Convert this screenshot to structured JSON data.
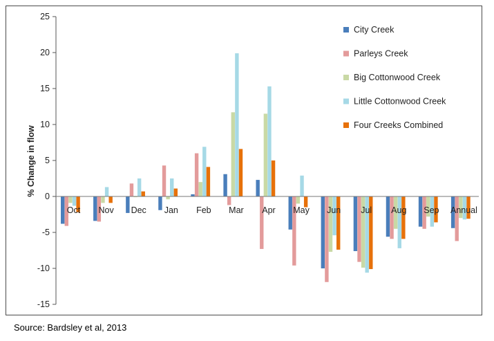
{
  "source": "Source: Bardsley et al, 2013",
  "chart_data": {
    "type": "bar",
    "title": "",
    "xlabel": "",
    "ylabel": "% Change in flow",
    "ylim": [
      -15,
      25
    ],
    "yticks": [
      25,
      20,
      15,
      10,
      5,
      0,
      -5,
      -10,
      -15
    ],
    "grid": false,
    "legend_position": "top-right",
    "categories": [
      "Oct",
      "Nov",
      "Dec",
      "Jan",
      "Feb",
      "Mar",
      "Apr",
      "May",
      "Jun",
      "Jul",
      "Aug",
      "Sep",
      "Annual"
    ],
    "series": [
      {
        "name": "City Creek",
        "color": "#4a7ebb",
        "values": [
          -3.8,
          -3.4,
          -2.3,
          -1.9,
          0.3,
          3.1,
          2.3,
          -4.6,
          -10.0,
          -7.6,
          -5.6,
          -4.2,
          -4.4
        ]
      },
      {
        "name": "Parleys Creek",
        "color": "#e39b9b",
        "values": [
          -4.1,
          -3.5,
          1.8,
          4.3,
          6.0,
          -1.2,
          -7.3,
          -9.6,
          -11.9,
          -9.1,
          -5.9,
          -4.5,
          -6.2
        ]
      },
      {
        "name": "Big Cottonwood Creek",
        "color": "#c9d9a5",
        "values": [
          -0.9,
          -0.9,
          -0.1,
          -0.4,
          2.0,
          11.7,
          11.5,
          -1.0,
          -7.7,
          -9.9,
          -4.5,
          -2.8,
          -3.0
        ]
      },
      {
        "name": "Little Cottonwood Creek",
        "color": "#a6d9e6",
        "values": [
          -1.3,
          1.3,
          2.5,
          2.5,
          6.9,
          19.9,
          15.3,
          2.9,
          -5.4,
          -10.6,
          -7.2,
          -4.2,
          -3.2
        ]
      },
      {
        "name": "Four Creeks Combined",
        "color": "#e7710a",
        "values": [
          -2.2,
          -0.9,
          0.7,
          1.1,
          4.1,
          6.6,
          5.0,
          -1.5,
          -7.4,
          -10.1,
          -5.9,
          -3.6,
          -3.1
        ]
      }
    ]
  }
}
